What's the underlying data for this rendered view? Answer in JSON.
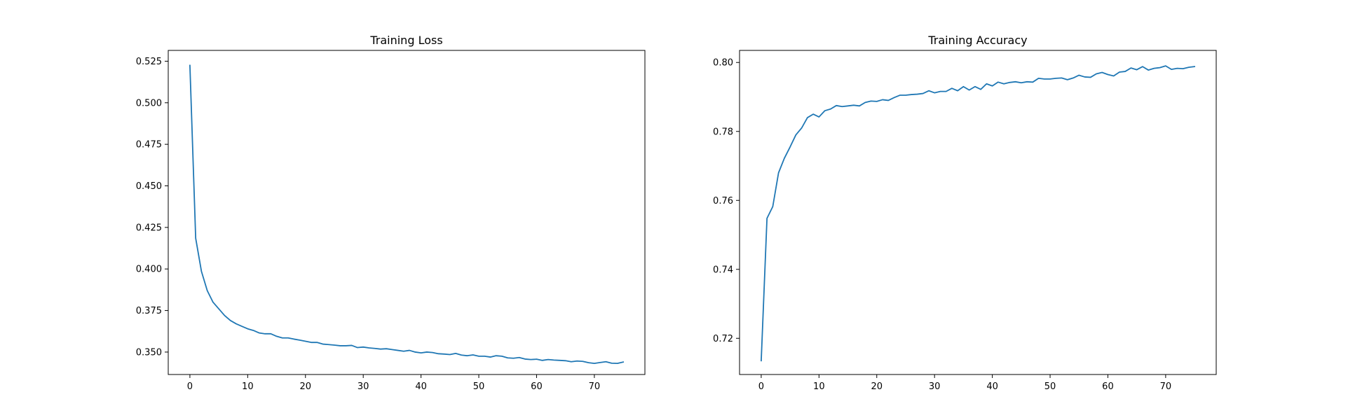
{
  "line_color": "#1f77b4",
  "chart_data": [
    {
      "type": "line",
      "title": "Training Loss",
      "xlabel": "",
      "ylabel": "",
      "xlim": [
        -3.75,
        78.75
      ],
      "ylim": [
        0.3365,
        0.5315
      ],
      "grid": false,
      "xticks": [
        0,
        10,
        20,
        30,
        40,
        50,
        60,
        70
      ],
      "xtick_labels": [
        "0",
        "10",
        "20",
        "30",
        "40",
        "50",
        "60",
        "70"
      ],
      "yticks": [
        0.35,
        0.375,
        0.4,
        0.425,
        0.45,
        0.475,
        0.5,
        0.525
      ],
      "ytick_labels": [
        "0.350",
        "0.375",
        "0.400",
        "0.425",
        "0.450",
        "0.475",
        "0.500",
        "0.525"
      ],
      "series": [
        {
          "x": [
            0,
            1,
            2,
            3,
            4,
            5,
            6,
            7,
            8,
            9,
            10,
            11,
            12,
            13,
            14,
            15,
            16,
            17,
            18,
            19,
            20,
            21,
            22,
            23,
            24,
            25,
            26,
            27,
            28,
            29,
            30,
            31,
            32,
            33,
            34,
            35,
            36,
            37,
            38,
            39,
            40,
            41,
            42,
            43,
            44,
            45,
            46,
            47,
            48,
            49,
            50,
            51,
            52,
            53,
            54,
            55,
            56,
            57,
            58,
            59,
            60,
            61,
            62,
            63,
            64,
            65,
            66,
            67,
            68,
            69,
            70,
            71,
            72,
            73,
            74,
            75
          ],
          "values": [
            0.5225,
            0.4185,
            0.3985,
            0.387,
            0.38,
            0.376,
            0.372,
            0.369,
            0.367,
            0.3655,
            0.364,
            0.363,
            0.3615,
            0.361,
            0.361,
            0.3595,
            0.3585,
            0.3585,
            0.3578,
            0.3572,
            0.3565,
            0.3558,
            0.3558,
            0.3548,
            0.3545,
            0.3542,
            0.3538,
            0.3538,
            0.354,
            0.3527,
            0.353,
            0.3525,
            0.3522,
            0.3518,
            0.352,
            0.3515,
            0.351,
            0.3505,
            0.351,
            0.35,
            0.3495,
            0.35,
            0.3497,
            0.349,
            0.3488,
            0.3485,
            0.3492,
            0.3482,
            0.3478,
            0.3483,
            0.3475,
            0.3475,
            0.347,
            0.3478,
            0.3475,
            0.3465,
            0.3463,
            0.3467,
            0.3458,
            0.3455,
            0.3457,
            0.345,
            0.3455,
            0.3452,
            0.345,
            0.3448,
            0.3442,
            0.3446,
            0.3444,
            0.3436,
            0.3432,
            0.3437,
            0.3442,
            0.3433,
            0.3432,
            0.344
          ]
        }
      ]
    },
    {
      "type": "line",
      "title": "Training Accuracy",
      "xlabel": "",
      "ylabel": "",
      "xlim": [
        -3.75,
        78.75
      ],
      "ylim": [
        0.7095,
        0.8035
      ],
      "grid": false,
      "xticks": [
        0,
        10,
        20,
        30,
        40,
        50,
        60,
        70
      ],
      "xtick_labels": [
        "0",
        "10",
        "20",
        "30",
        "40",
        "50",
        "60",
        "70"
      ],
      "yticks": [
        0.72,
        0.74,
        0.76,
        0.78,
        0.8
      ],
      "ytick_labels": [
        "0.72",
        "0.74",
        "0.76",
        "0.78",
        "0.80"
      ],
      "series": [
        {
          "x": [
            0,
            1,
            2,
            3,
            4,
            5,
            6,
            7,
            8,
            9,
            10,
            11,
            12,
            13,
            14,
            15,
            16,
            17,
            18,
            19,
            20,
            21,
            22,
            23,
            24,
            25,
            26,
            27,
            28,
            29,
            30,
            31,
            32,
            33,
            34,
            35,
            36,
            37,
            38,
            39,
            40,
            41,
            42,
            43,
            44,
            45,
            46,
            47,
            48,
            49,
            50,
            51,
            52,
            53,
            54,
            55,
            56,
            57,
            58,
            59,
            60,
            61,
            62,
            63,
            64,
            65,
            66,
            67,
            68,
            69,
            70,
            71,
            72,
            73,
            74,
            75
          ],
          "values": [
            0.7135,
            0.7548,
            0.7582,
            0.768,
            0.7722,
            0.7755,
            0.779,
            0.781,
            0.784,
            0.785,
            0.7842,
            0.786,
            0.7865,
            0.7875,
            0.7872,
            0.7874,
            0.7876,
            0.7874,
            0.7884,
            0.7888,
            0.7887,
            0.7892,
            0.789,
            0.7898,
            0.7905,
            0.7905,
            0.7907,
            0.7908,
            0.791,
            0.7918,
            0.7912,
            0.7916,
            0.7916,
            0.7925,
            0.7918,
            0.793,
            0.792,
            0.793,
            0.7922,
            0.7938,
            0.7932,
            0.7943,
            0.7938,
            0.7942,
            0.7944,
            0.7941,
            0.7944,
            0.7943,
            0.7954,
            0.7952,
            0.7952,
            0.7954,
            0.7955,
            0.795,
            0.7955,
            0.7963,
            0.7958,
            0.7957,
            0.7967,
            0.7971,
            0.7965,
            0.7961,
            0.7972,
            0.7974,
            0.7984,
            0.7979,
            0.7988,
            0.7978,
            0.7983,
            0.7985,
            0.799,
            0.798,
            0.7983,
            0.7982,
            0.7986,
            0.7988
          ]
        }
      ]
    }
  ]
}
